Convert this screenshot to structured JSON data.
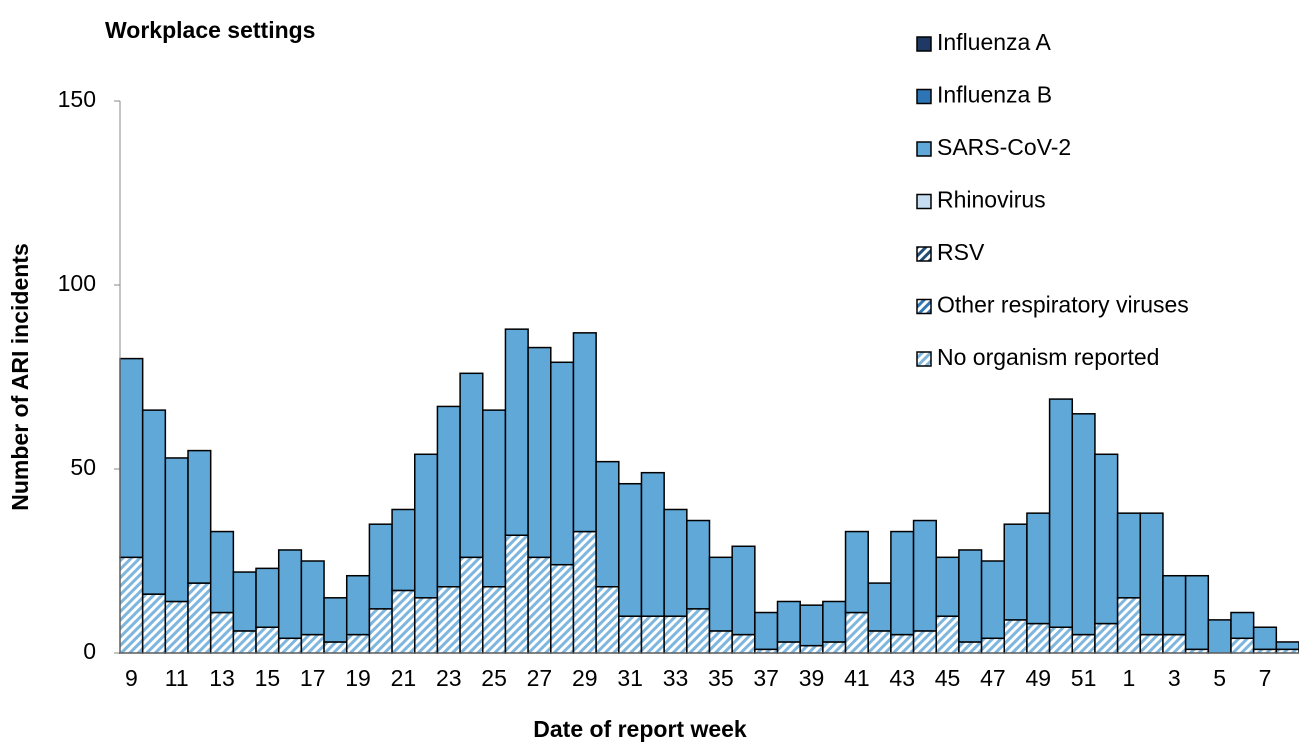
{
  "chart_data": {
    "type": "stacked_bar",
    "title": "Workplace settings",
    "x_label": "Date of report week",
    "y_label": "Number of ARI incidents",
    "categories": [
      "9",
      null,
      "11",
      null,
      "13",
      null,
      "15",
      null,
      "17",
      null,
      "19",
      null,
      "21",
      null,
      "23",
      null,
      "25",
      null,
      "27",
      null,
      "29",
      null,
      "31",
      null,
      "33",
      null,
      "35",
      null,
      "37",
      null,
      "39",
      null,
      "41",
      null,
      "43",
      null,
      "45",
      null,
      "47",
      null,
      "49",
      null,
      "51",
      null,
      "1",
      null,
      "3",
      null,
      "5",
      null,
      "7",
      null
    ],
    "ylim": [
      0,
      150
    ],
    "yticks": [
      0,
      50,
      100,
      150
    ],
    "legend": "top-right",
    "series": [
      {
        "name": "Influenza A",
        "color": "#1f3864",
        "hatch": false,
        "values": [
          0,
          0,
          0,
          0,
          0,
          0,
          0,
          0,
          0,
          0,
          0,
          0,
          0,
          0,
          0,
          0,
          0,
          0,
          0,
          0,
          0,
          0,
          0,
          0,
          0,
          0,
          0,
          0,
          0,
          0,
          0,
          0,
          0,
          0,
          0,
          0,
          0,
          0,
          0,
          0,
          0,
          0,
          0,
          0,
          0,
          0,
          0,
          0,
          0,
          0,
          0,
          0
        ]
      },
      {
        "name": "Influenza B",
        "color": "#2e75b6",
        "hatch": false,
        "values": [
          0,
          0,
          0,
          0,
          0,
          0,
          0,
          0,
          0,
          0,
          0,
          0,
          0,
          0,
          0,
          0,
          0,
          0,
          0,
          0,
          0,
          0,
          0,
          0,
          0,
          0,
          0,
          0,
          0,
          0,
          0,
          0,
          0,
          0,
          0,
          0,
          0,
          0,
          0,
          0,
          0,
          0,
          0,
          0,
          0,
          0,
          0,
          0,
          0,
          0,
          0,
          0
        ]
      },
      {
        "name": "SARS-CoV-2",
        "color": "#5fa8d8",
        "hatch": false,
        "values": [
          54,
          50,
          39,
          36,
          22,
          16,
          16,
          24,
          20,
          12,
          16,
          23,
          22,
          39,
          49,
          50,
          48,
          56,
          57,
          55,
          54,
          34,
          36,
          39,
          29,
          24,
          20,
          24,
          10,
          11,
          11,
          11,
          22,
          13,
          28,
          30,
          16,
          25,
          21,
          26,
          30,
          62,
          60,
          46,
          23,
          33,
          16,
          20,
          9,
          7,
          6,
          2
        ]
      },
      {
        "name": "Rhinovirus",
        "color": "#c6dcf0",
        "hatch": false,
        "values": [
          0,
          0,
          0,
          0,
          0,
          0,
          0,
          0,
          0,
          0,
          0,
          0,
          0,
          0,
          0,
          0,
          0,
          0,
          0,
          0,
          0,
          0,
          0,
          0,
          0,
          0,
          0,
          0,
          0,
          0,
          0,
          0,
          0,
          0,
          0,
          0,
          0,
          0,
          0,
          0,
          0,
          0,
          0,
          0,
          0,
          0,
          0,
          0,
          0,
          0,
          0,
          0
        ]
      },
      {
        "name": "RSV",
        "color": "#1f4e79",
        "hatch": true,
        "values": [
          0,
          0,
          0,
          0,
          0,
          0,
          0,
          0,
          0,
          0,
          0,
          0,
          0,
          0,
          0,
          0,
          0,
          0,
          0,
          0,
          0,
          0,
          0,
          0,
          0,
          0,
          0,
          0,
          0,
          0,
          0,
          0,
          0,
          0,
          0,
          0,
          0,
          0,
          0,
          0,
          0,
          0,
          0,
          0,
          0,
          0,
          0,
          0,
          0,
          0,
          0,
          0
        ]
      },
      {
        "name": "Other respiratory viruses",
        "color": "#2e75b6",
        "hatch": true,
        "values": [
          0,
          0,
          0,
          0,
          0,
          0,
          0,
          0,
          0,
          0,
          0,
          0,
          0,
          0,
          0,
          0,
          0,
          0,
          0,
          0,
          0,
          0,
          0,
          0,
          0,
          0,
          0,
          0,
          0,
          0,
          0,
          0,
          0,
          0,
          0,
          0,
          0,
          0,
          0,
          0,
          0,
          0,
          0,
          0,
          0,
          0,
          0,
          0,
          0,
          0,
          0,
          0
        ]
      },
      {
        "name": "No organism reported",
        "color": "#7fb6de",
        "hatch": true,
        "values": [
          26,
          16,
          14,
          19,
          11,
          6,
          7,
          4,
          5,
          3,
          5,
          12,
          17,
          15,
          18,
          26,
          18,
          32,
          26,
          24,
          33,
          18,
          10,
          10,
          10,
          12,
          6,
          5,
          1,
          3,
          2,
          3,
          11,
          6,
          5,
          6,
          10,
          3,
          4,
          9,
          8,
          7,
          5,
          8,
          15,
          5,
          5,
          1,
          0,
          4,
          1,
          1
        ]
      }
    ]
  }
}
